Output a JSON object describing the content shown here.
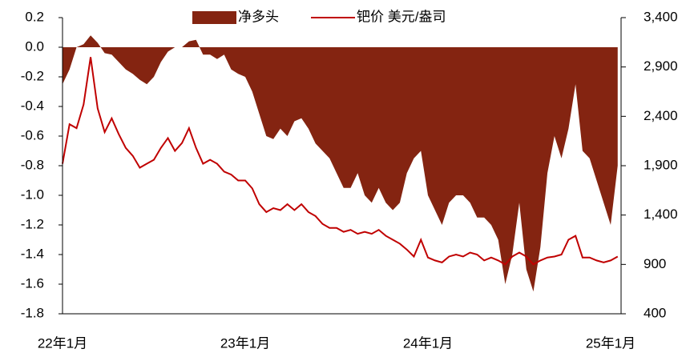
{
  "chart_data": {
    "type": "area_line",
    "categories": [
      "22年1月",
      null,
      null,
      null,
      null,
      null,
      null,
      null,
      null,
      null,
      null,
      null,
      null,
      null,
      null,
      null,
      null,
      null,
      null,
      null,
      null,
      null,
      null,
      null,
      null,
      null,
      "23年1月",
      null,
      null,
      null,
      null,
      null,
      null,
      null,
      null,
      null,
      null,
      null,
      null,
      null,
      null,
      null,
      null,
      null,
      null,
      null,
      null,
      null,
      null,
      null,
      null,
      null,
      "24年1月",
      null,
      null,
      null,
      null,
      null,
      null,
      null,
      null,
      null,
      null,
      null,
      null,
      null,
      null,
      null,
      null,
      null,
      null,
      null,
      null,
      null,
      null,
      null,
      null,
      null,
      "25年1月",
      null
    ],
    "series": [
      {
        "name": "净多头",
        "color": "#842411",
        "kind": "area",
        "values": [
          -0.25,
          -0.15,
          0.0,
          0.02,
          0.08,
          0.03,
          -0.04,
          -0.05,
          -0.1,
          -0.15,
          -0.18,
          -0.22,
          -0.25,
          -0.2,
          -0.1,
          -0.03,
          0.0,
          0.0,
          0.04,
          0.05,
          -0.05,
          -0.05,
          -0.08,
          -0.05,
          -0.15,
          -0.18,
          -0.2,
          -0.3,
          -0.45,
          -0.6,
          -0.62,
          -0.55,
          -0.6,
          -0.5,
          -0.48,
          -0.55,
          -0.65,
          -0.7,
          -0.75,
          -0.85,
          -0.95,
          -0.95,
          -0.85,
          -1.0,
          -1.05,
          -0.95,
          -1.05,
          -1.1,
          -1.05,
          -0.85,
          -0.75,
          -0.7,
          -1.0,
          -1.1,
          -1.2,
          -1.05,
          -1.0,
          -1.0,
          -1.05,
          -1.15,
          -1.15,
          -1.2,
          -1.3,
          -1.6,
          -1.4,
          -1.05,
          -1.5,
          -1.65,
          -1.35,
          -0.85,
          -0.6,
          -0.75,
          -0.55,
          -0.25,
          -0.7,
          -0.75,
          -0.9,
          -1.05,
          -1.2,
          -0.8
        ]
      },
      {
        "name": "钯价 美元/盎司",
        "color": "#c00000",
        "kind": "line",
        "axis": "y2",
        "values": [
          1920,
          2320,
          2280,
          2520,
          3000,
          2480,
          2240,
          2380,
          2220,
          2080,
          2000,
          1880,
          1920,
          1960,
          2080,
          2180,
          2050,
          2130,
          2280,
          2080,
          1920,
          1960,
          1920,
          1840,
          1810,
          1750,
          1750,
          1670,
          1510,
          1430,
          1470,
          1450,
          1510,
          1450,
          1510,
          1430,
          1390,
          1310,
          1270,
          1270,
          1230,
          1250,
          1210,
          1230,
          1210,
          1250,
          1190,
          1150,
          1110,
          1050,
          980,
          1150,
          970,
          940,
          920,
          980,
          1000,
          980,
          1020,
          1000,
          940,
          970,
          940,
          900,
          980,
          1020,
          980,
          900,
          940,
          970,
          980,
          1000,
          1150,
          1190,
          970,
          970,
          940,
          920,
          940,
          980
        ]
      }
    ],
    "ylim": [
      -1.8,
      0.2
    ],
    "yticks": [
      0.2,
      {
        "value": 0,
        "label": "0.0"
      },
      -0.2,
      -0.4,
      -0.6,
      -0.8,
      {
        "value": -1,
        "label": "-1.0"
      },
      -1.2,
      -1.4,
      -1.6,
      -1.8
    ],
    "y2lim": [
      400,
      3400
    ],
    "y2ticks": [
      400,
      900,
      {
        "value": 1400,
        "label": "1,400"
      },
      {
        "value": 1900,
        "label": "1,900"
      },
      {
        "value": 2400,
        "label": "2,400"
      },
      {
        "value": 2900,
        "label": "2,900"
      },
      {
        "value": 3400,
        "label": "3,400"
      }
    ],
    "legend": "top"
  }
}
